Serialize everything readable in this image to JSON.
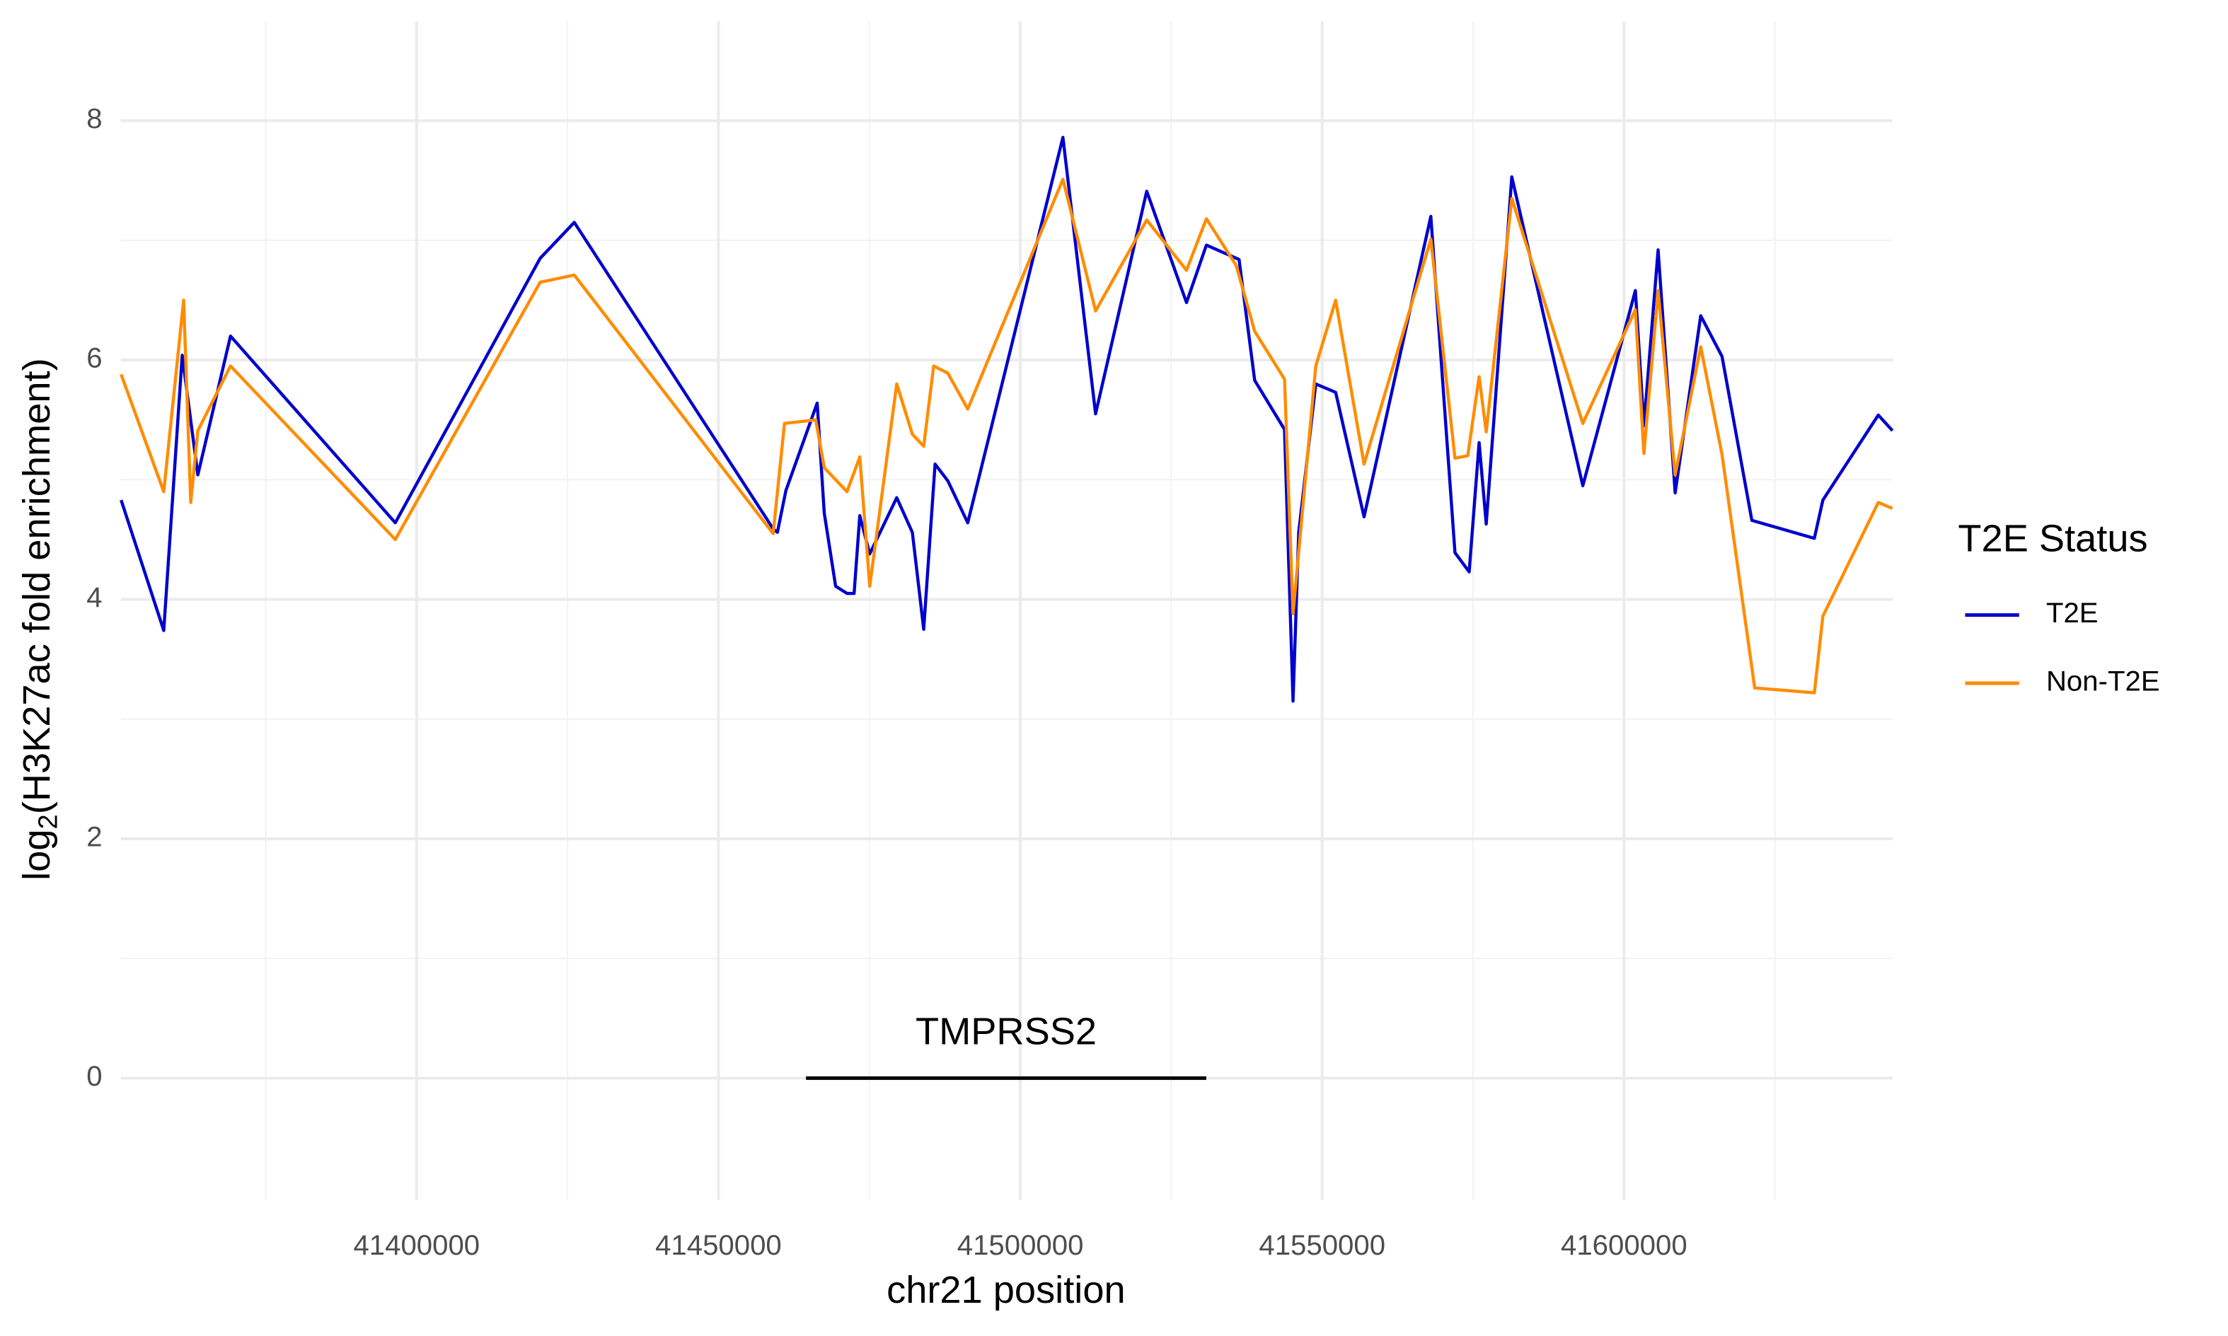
{
  "chart_data": {
    "type": "line",
    "xlabel": "chr21 position",
    "ylabel": {
      "base": "log",
      "subscript": "2",
      "rest": "(H3K27ac fold enrichment)"
    },
    "legend_title": "T2E Status",
    "legend_position": "right",
    "grid": true,
    "xlim": [
      41351000,
      41644500
    ],
    "ylim": [
      -1.02,
      8.83
    ],
    "xticks": [
      41400000,
      41450000,
      41500000,
      41550000,
      41600000
    ],
    "yticks": [
      0,
      2,
      4,
      6,
      8
    ],
    "x_minor_grid": [
      41375000,
      41425000,
      41475000,
      41525000,
      41575000,
      41625000
    ],
    "y_minor_grid": [
      1,
      3,
      5,
      7
    ],
    "annotations": [
      {
        "label": "TMPRSS2",
        "start": 41464500,
        "end": 41530800,
        "y": 0
      }
    ],
    "series": [
      {
        "name": "T2E",
        "color": "#0000CD",
        "x": [
          41351059,
          41358118,
          41361176,
          41363765,
          41369176,
          41396471,
          41420470,
          41426118,
          41459059,
          41459765,
          41461176,
          41466353,
          41467529,
          41469412,
          41471294,
          41472470,
          41473412,
          41475059,
          41479529,
          41482118,
          41484000,
          41485882,
          41488000,
          41491294,
          41507059,
          41512470,
          41520941,
          41527529,
          41530824,
          41536235,
          41538824,
          41543765,
          41545176,
          41546118,
          41548941,
          41552235,
          41556941,
          41568000,
          41572000,
          41574353,
          41576000,
          41577176,
          41581412,
          41593176,
          41601882,
          41603294,
          41605647,
          41608471,
          41612706,
          41616235,
          41621176,
          41631529,
          41632941,
          41642118,
          41644470
        ],
        "values": [
          4.83,
          3.74,
          6.04,
          5.04,
          6.2,
          4.64,
          6.85,
          7.15,
          4.59,
          4.56,
          4.91,
          5.64,
          4.72,
          4.11,
          4.05,
          4.05,
          4.7,
          4.38,
          4.85,
          4.56,
          3.75,
          5.13,
          4.99,
          4.64,
          7.86,
          5.55,
          7.41,
          6.48,
          6.96,
          6.84,
          5.83,
          5.42,
          3.15,
          4.56,
          5.8,
          5.73,
          4.69,
          7.2,
          4.39,
          4.23,
          5.31,
          4.63,
          7.53,
          4.95,
          6.58,
          5.45,
          6.92,
          4.89,
          6.37,
          6.03,
          4.66,
          4.51,
          4.83,
          5.54,
          5.41
        ]
      },
      {
        "name": "Non-T2E",
        "color": "#FF8C00",
        "x": [
          41351059,
          41358118,
          41361412,
          41362588,
          41363765,
          41369176,
          41396471,
          41420470,
          41426118,
          41459059,
          41460941,
          41466118,
          41467529,
          41471294,
          41473412,
          41475059,
          41479529,
          41482118,
          41484000,
          41485647,
          41488000,
          41491294,
          41507059,
          41512470,
          41520941,
          41527529,
          41530824,
          41535765,
          41538824,
          41543765,
          41545176,
          41548941,
          41552235,
          41556941,
          41568000,
          41572000,
          41574118,
          41576000,
          41577176,
          41581412,
          41593176,
          41601882,
          41603294,
          41605647,
          41608471,
          41612706,
          41616235,
          41621647,
          41631529,
          41632941,
          41642118,
          41644470
        ],
        "values": [
          5.88,
          4.9,
          6.5,
          4.81,
          5.41,
          5.95,
          4.5,
          6.65,
          6.71,
          4.55,
          5.47,
          5.5,
          5.1,
          4.9,
          5.19,
          4.11,
          5.8,
          5.38,
          5.28,
          5.95,
          5.89,
          5.59,
          7.51,
          6.41,
          7.17,
          6.75,
          7.18,
          6.79,
          6.24,
          5.84,
          3.88,
          5.95,
          6.5,
          5.13,
          7.01,
          5.18,
          5.2,
          5.86,
          5.4,
          7.35,
          5.47,
          6.42,
          5.22,
          6.58,
          5.04,
          6.11,
          5.21,
          3.26,
          3.22,
          3.86,
          4.81,
          4.76
        ]
      }
    ]
  }
}
